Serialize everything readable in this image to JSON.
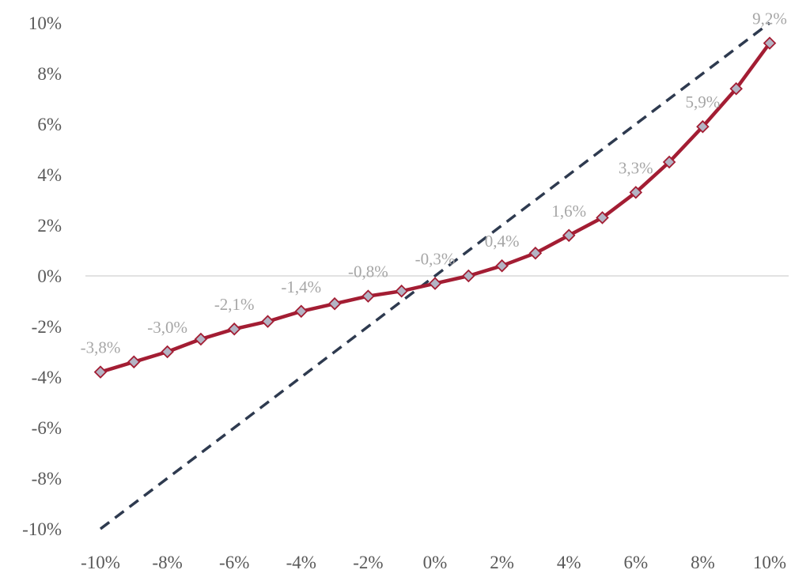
{
  "chart_data": {
    "type": "line",
    "title": "",
    "xlabel": "",
    "ylabel": "",
    "xlim": [
      -10,
      10
    ],
    "ylim": [
      -10,
      10
    ],
    "x_ticks": [
      "-10%",
      "-8%",
      "-6%",
      "-4%",
      "-2%",
      "0%",
      "2%",
      "4%",
      "6%",
      "8%",
      "10%"
    ],
    "y_ticks": [
      "10%",
      "8%",
      "6%",
      "4%",
      "2%",
      "0%",
      "-2%",
      "-4%",
      "-6%",
      "-8%",
      "-10%"
    ],
    "x_tick_values": [
      -10,
      -8,
      -6,
      -4,
      -2,
      0,
      2,
      4,
      6,
      8,
      10
    ],
    "y_tick_values": [
      10,
      8,
      6,
      4,
      2,
      0,
      -2,
      -4,
      -6,
      -8,
      -10
    ],
    "grid": "horizontal zero line only",
    "legend": "none",
    "series": [
      {
        "style": "solid line with diamond markers",
        "color": "#a31d33",
        "marker_fill": "#b4b4c4",
        "x": [
          -10,
          -9,
          -8,
          -7,
          -6,
          -5,
          -4,
          -3,
          -2,
          -1,
          0,
          1,
          2,
          3,
          4,
          5,
          6,
          7,
          8,
          9,
          10
        ],
        "y": [
          -3.8,
          -3.4,
          -3.0,
          -2.5,
          -2.1,
          -1.8,
          -1.4,
          -1.1,
          -0.8,
          -0.6,
          -0.3,
          0.0,
          0.4,
          0.9,
          1.6,
          2.3,
          3.3,
          4.5,
          5.9,
          7.4,
          9.2
        ]
      },
      {
        "style": "dashed line",
        "color": "#2e3a4f",
        "x": [
          -10,
          10
        ],
        "y": [
          -10,
          10
        ]
      }
    ],
    "data_labels": [
      {
        "x": -10,
        "y": -3.8,
        "text": "-3,8%"
      },
      {
        "x": -8,
        "y": -3.0,
        "text": "-3,0%"
      },
      {
        "x": -6,
        "y": -2.1,
        "text": "-2,1%"
      },
      {
        "x": -4,
        "y": -1.4,
        "text": "-1,4%"
      },
      {
        "x": -2,
        "y": -0.8,
        "text": "-0,8%"
      },
      {
        "x": 0,
        "y": -0.3,
        "text": "-0,3%"
      },
      {
        "x": 2,
        "y": 0.4,
        "text": "0,4%"
      },
      {
        "x": 4,
        "y": 1.6,
        "text": "1,6%"
      },
      {
        "x": 6,
        "y": 3.3,
        "text": "3,3%"
      },
      {
        "x": 8,
        "y": 5.9,
        "text": "5,9%"
      },
      {
        "x": 10,
        "y": 9.2,
        "text": "9,2%"
      }
    ]
  }
}
